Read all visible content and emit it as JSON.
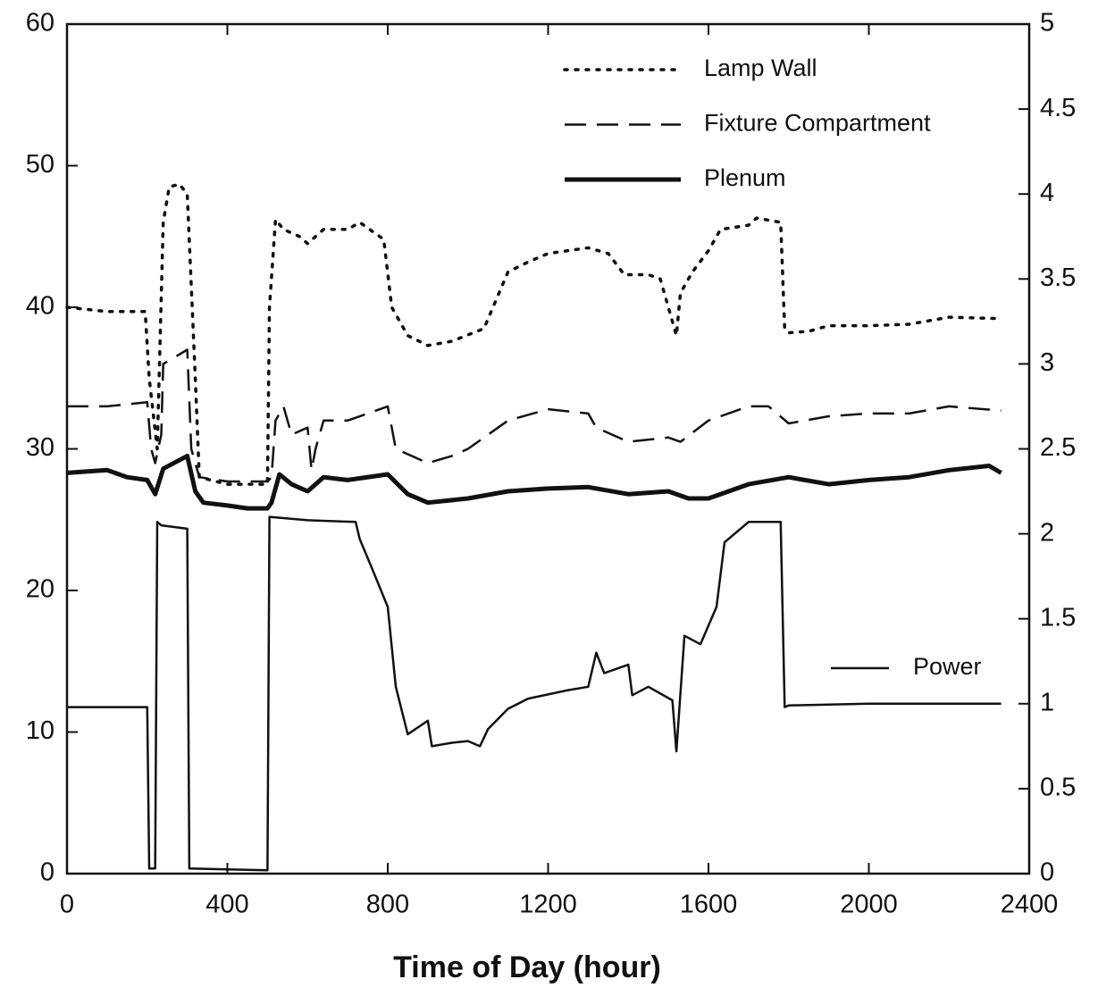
{
  "chart_data": {
    "type": "line",
    "x_label": "Time of Day (hour)",
    "xlim": [
      0,
      2400
    ],
    "xticks": [
      0,
      400,
      800,
      1200,
      1600,
      2000,
      2400
    ],
    "ylim": [
      0,
      60
    ],
    "yticks": [
      0,
      10,
      20,
      30,
      40,
      50,
      60
    ],
    "y2lim": [
      0,
      5
    ],
    "y2ticks": [
      0,
      0.5,
      1,
      1.5,
      2,
      2.5,
      3,
      3.5,
      4,
      4.5,
      5
    ],
    "grid": false,
    "legend_position": "top-right",
    "series": [
      {
        "name": "Lamp Wall",
        "color": "#111111",
        "style": "dotted",
        "x": [
          0,
          100,
          195,
          205,
          225,
          240,
          255,
          280,
          300,
          320,
          330,
          400,
          500,
          505,
          520,
          540,
          580,
          600,
          640,
          700,
          730,
          780,
          790,
          810,
          850,
          900,
          960,
          1040,
          1100,
          1150,
          1200,
          1300,
          1350,
          1390,
          1450,
          1480,
          1520,
          1530,
          1560,
          1600,
          1630,
          1700,
          1720,
          1780,
          1790,
          1800,
          1850,
          1900,
          2000,
          2100,
          2200,
          2330
        ],
        "values": [
          40,
          39.7,
          39.7,
          35,
          30,
          46,
          48.5,
          48.7,
          48,
          35,
          28,
          27.5,
          27.5,
          40,
          46.2,
          45.5,
          45,
          44.5,
          45.5,
          45.5,
          46,
          45,
          44.8,
          40,
          38,
          37.3,
          37.6,
          38.5,
          42.5,
          43.2,
          43.8,
          44.2,
          43.8,
          42.3,
          42.3,
          42,
          38,
          41,
          42.5,
          44,
          45.5,
          45.8,
          46.3,
          46,
          38.5,
          38.2,
          38.3,
          38.7,
          38.7,
          38.8,
          39.3,
          39.2
        ]
      },
      {
        "name": "Fixture Compartment",
        "color": "#111111",
        "style": "dashed",
        "x": [
          0,
          100,
          200,
          210,
          220,
          235,
          240,
          300,
          310,
          330,
          400,
          500,
          510,
          520,
          540,
          560,
          600,
          610,
          620,
          640,
          700,
          750,
          800,
          820,
          900,
          960,
          1000,
          1100,
          1200,
          1300,
          1320,
          1400,
          1500,
          1530,
          1600,
          1700,
          1750,
          1800,
          1900,
          2000,
          2100,
          2200,
          2330
        ],
        "values": [
          33,
          33,
          33.3,
          30,
          29,
          31,
          36,
          37,
          30,
          28,
          27.7,
          27.7,
          28,
          32,
          33,
          31,
          31.5,
          28.5,
          30,
          32,
          32,
          32.5,
          33,
          30,
          29,
          29.5,
          30,
          32,
          32.8,
          32.5,
          31.5,
          30.5,
          30.8,
          30.5,
          32,
          33,
          33,
          31.8,
          32.3,
          32.5,
          32.5,
          33,
          32.7
        ]
      },
      {
        "name": "Plenum",
        "color": "#111111",
        "style": "thick",
        "x": [
          0,
          100,
          150,
          200,
          220,
          240,
          300,
          320,
          340,
          400,
          450,
          500,
          510,
          530,
          560,
          600,
          640,
          700,
          800,
          850,
          900,
          1000,
          1100,
          1200,
          1300,
          1400,
          1500,
          1550,
          1600,
          1700,
          1800,
          1900,
          2000,
          2100,
          2200,
          2300,
          2330
        ],
        "values": [
          28.3,
          28.5,
          28,
          27.8,
          26.8,
          28.6,
          29.5,
          27,
          26.2,
          26,
          25.8,
          25.8,
          26.2,
          28.2,
          27.5,
          27,
          28,
          27.8,
          28.2,
          26.8,
          26.2,
          26.5,
          27,
          27.2,
          27.3,
          26.8,
          27,
          26.5,
          26.5,
          27.5,
          28,
          27.5,
          27.8,
          28,
          28.5,
          28.8,
          28.3
        ]
      },
      {
        "name": "Power",
        "color": "#111111",
        "style": "solid",
        "axis": "y2",
        "x": [
          0,
          200,
          205,
          220,
          225,
          235,
          300,
          305,
          500,
          505,
          600,
          720,
          730,
          760,
          800,
          820,
          850,
          900,
          910,
          960,
          1000,
          1030,
          1050,
          1100,
          1150,
          1250,
          1300,
          1320,
          1340,
          1400,
          1410,
          1450,
          1510,
          1520,
          1540,
          1580,
          1620,
          1640,
          1700,
          1780,
          1790,
          1800,
          2000,
          2330
        ],
        "values": [
          0.98,
          0.98,
          0.03,
          0.03,
          2.07,
          2.05,
          2.03,
          0.03,
          0.02,
          2.1,
          2.08,
          2.07,
          1.97,
          1.8,
          1.57,
          1.1,
          0.82,
          0.9,
          0.75,
          0.77,
          0.78,
          0.75,
          0.85,
          0.97,
          1.03,
          1.08,
          1.1,
          1.3,
          1.18,
          1.23,
          1.05,
          1.1,
          1.02,
          0.72,
          1.4,
          1.35,
          1.57,
          1.95,
          2.07,
          2.07,
          0.98,
          0.99,
          1.0,
          1.0
        ]
      }
    ]
  }
}
